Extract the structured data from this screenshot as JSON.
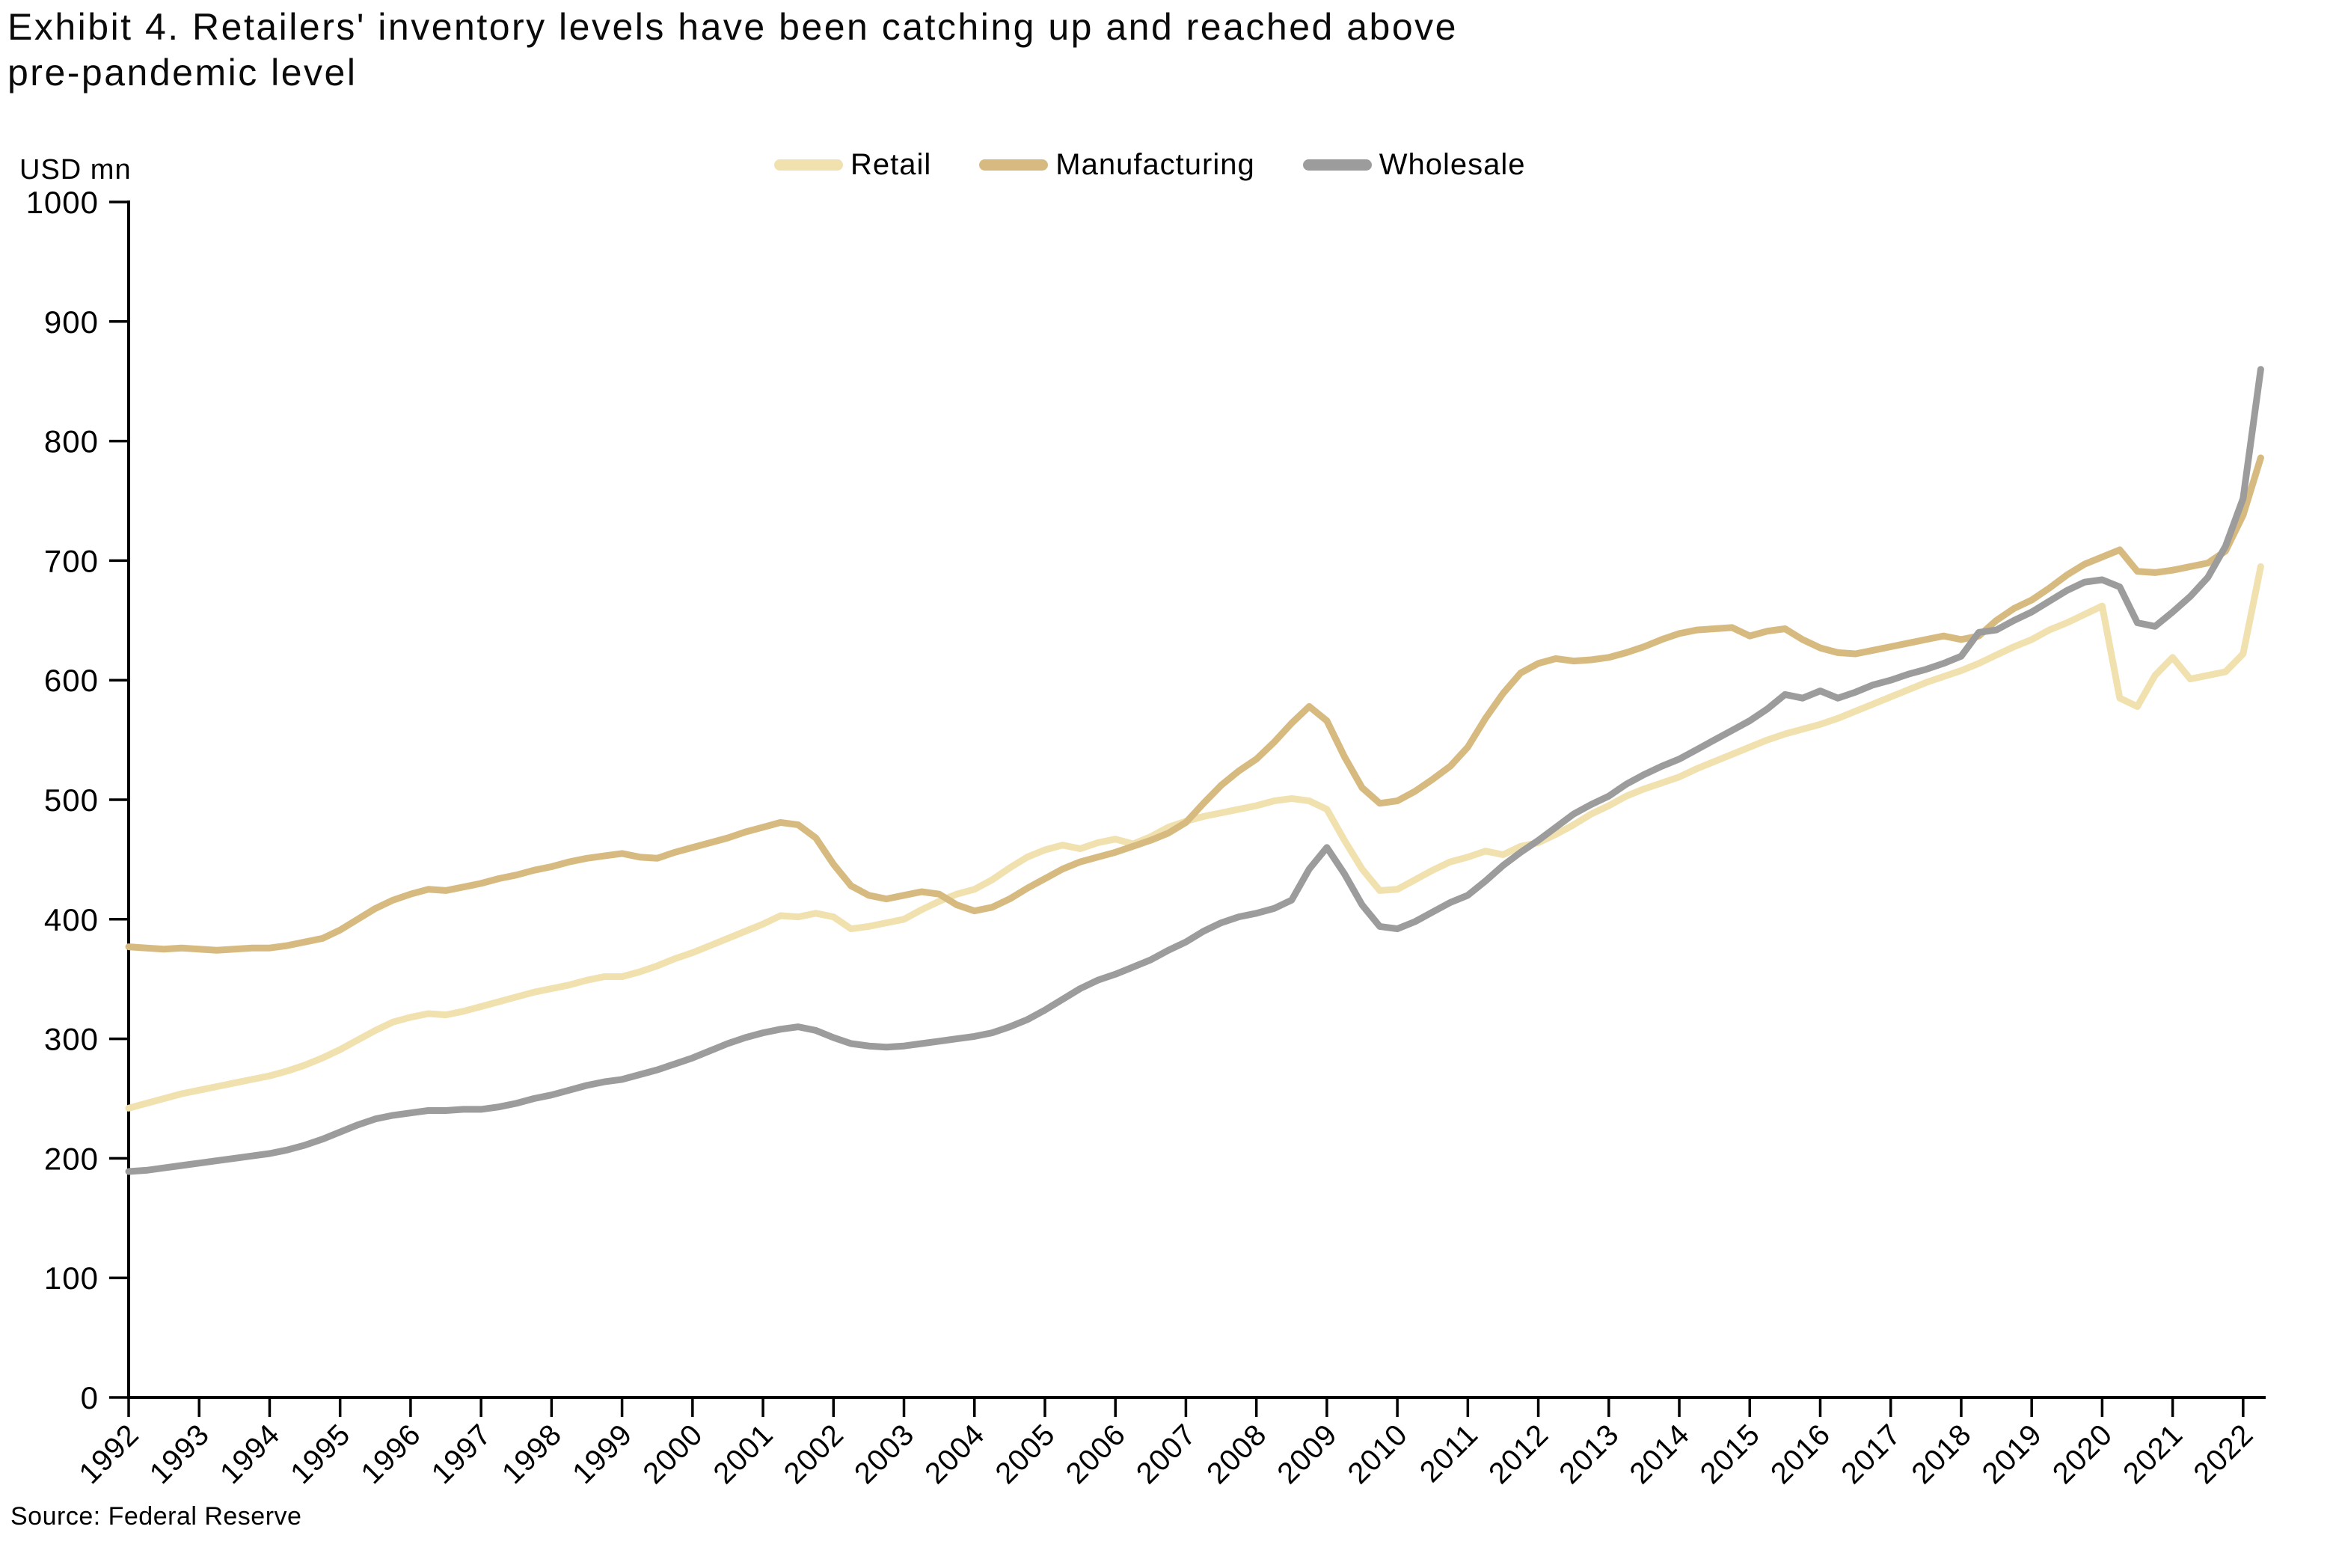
{
  "chart_data": {
    "type": "line",
    "title": "Exhibit 4. Retailers' inventory levels have been catching up and reached above pre-pandemic level",
    "title_lines": [
      "Exhibit 4. Retailers' inventory levels have been catching up and reached above",
      "pre-pandemic level"
    ],
    "ylabel": "USD mn",
    "xlabel": "",
    "source": "Source: Federal Reserve",
    "ylim": [
      0,
      1000
    ],
    "xlim": [
      1992,
      2022.32
    ],
    "y_ticks": [
      0,
      100,
      200,
      300,
      400,
      500,
      600,
      700,
      800,
      900,
      1000
    ],
    "x_ticks": [
      1992,
      1993,
      1994,
      1995,
      1996,
      1997,
      1998,
      1999,
      2000,
      2001,
      2002,
      2003,
      2004,
      2005,
      2006,
      2007,
      2008,
      2009,
      2010,
      2011,
      2012,
      2013,
      2014,
      2015,
      2016,
      2017,
      2018,
      2019,
      2020,
      2021,
      2022
    ],
    "grid": false,
    "legend_position": "top-center",
    "axis_color": "#000000",
    "x_start": 1992,
    "x_step": 0.25,
    "series": [
      {
        "name": "Retail",
        "color": "#F0E1AE",
        "values": [
          242,
          246,
          250,
          254,
          257,
          260,
          263,
          266,
          269,
          273,
          278,
          284,
          291,
          299,
          307,
          314,
          318,
          321,
          320,
          323,
          327,
          331,
          335,
          339,
          342,
          345,
          349,
          352,
          352,
          356,
          361,
          367,
          372,
          378,
          384,
          390,
          396,
          403,
          402,
          405,
          402,
          392,
          394,
          397,
          400,
          408,
          415,
          421,
          425,
          433,
          443,
          452,
          458,
          462,
          459,
          464,
          467,
          463,
          469,
          477,
          482,
          486,
          489,
          492,
          495,
          499,
          501,
          499,
          492,
          466,
          442,
          424,
          425,
          433,
          441,
          448,
          452,
          457,
          454,
          461,
          464,
          471,
          479,
          488,
          495,
          503,
          509,
          514,
          519,
          526,
          532,
          538,
          544,
          550,
          555,
          559,
          563,
          568,
          574,
          580,
          586,
          592,
          598,
          603,
          608,
          614,
          621,
          628,
          634,
          642,
          648,
          655,
          662,
          585,
          578,
          604,
          619,
          601,
          604,
          607,
          622,
          695
        ]
      },
      {
        "name": "Manufacturing",
        "color": "#D7BA80",
        "values": [
          377,
          376,
          375,
          376,
          375,
          374,
          375,
          376,
          376,
          378,
          381,
          384,
          391,
          400,
          409,
          416,
          421,
          425,
          424,
          427,
          430,
          434,
          437,
          441,
          444,
          448,
          451,
          453,
          455,
          452,
          451,
          456,
          460,
          464,
          468,
          473,
          477,
          481,
          479,
          468,
          446,
          428,
          420,
          417,
          420,
          423,
          421,
          412,
          407,
          410,
          417,
          426,
          434,
          442,
          448,
          452,
          456,
          461,
          466,
          472,
          481,
          497,
          512,
          524,
          534,
          548,
          564,
          578,
          566,
          536,
          510,
          497,
          499,
          507,
          517,
          528,
          544,
          568,
          589,
          606,
          614,
          618,
          616,
          617,
          619,
          623,
          628,
          634,
          639,
          642,
          643,
          644,
          637,
          641,
          643,
          634,
          627,
          623,
          622,
          625,
          628,
          631,
          634,
          637,
          634,
          637,
          650,
          660,
          667,
          677,
          688,
          697,
          703,
          709,
          691,
          690,
          692,
          695,
          698,
          708,
          738,
          786
        ]
      },
      {
        "name": "Wholesale",
        "color": "#9C9C9C",
        "values": [
          189,
          190,
          192,
          194,
          196,
          198,
          200,
          202,
          204,
          207,
          211,
          216,
          222,
          228,
          233,
          236,
          238,
          240,
          240,
          241,
          241,
          243,
          246,
          250,
          253,
          257,
          261,
          264,
          266,
          270,
          274,
          279,
          284,
          290,
          296,
          301,
          305,
          308,
          310,
          307,
          301,
          296,
          294,
          293,
          294,
          296,
          298,
          300,
          302,
          305,
          310,
          316,
          324,
          333,
          342,
          349,
          354,
          360,
          366,
          374,
          381,
          390,
          397,
          402,
          405,
          409,
          416,
          442,
          460,
          438,
          412,
          394,
          392,
          398,
          406,
          414,
          420,
          432,
          445,
          456,
          466,
          477,
          488,
          496,
          503,
          513,
          521,
          528,
          534,
          542,
          550,
          558,
          566,
          576,
          588,
          585,
          591,
          585,
          590,
          596,
          600,
          605,
          609,
          614,
          620,
          640,
          642,
          650,
          657,
          666,
          675,
          682,
          684,
          678,
          648,
          645,
          657,
          670,
          686,
          712,
          752,
          860
        ]
      }
    ]
  }
}
